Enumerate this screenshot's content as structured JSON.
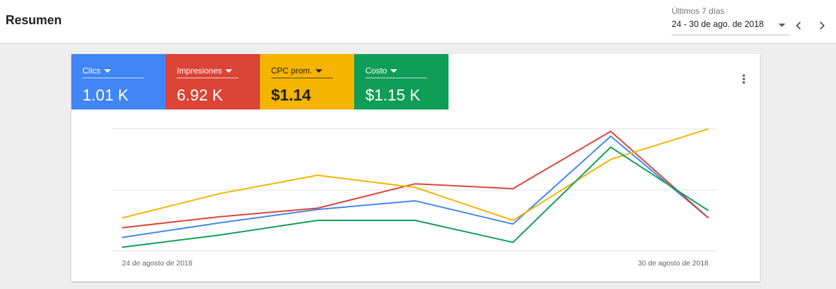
{
  "header": {
    "title": "Resumen",
    "range_label": "Últimos 7 días",
    "range_value": "24 - 30 de ago. de 2018",
    "prev_icon": "chevron-left-icon",
    "next_icon": "chevron-right-icon"
  },
  "metrics": [
    {
      "label": "Clics",
      "value": "1.01 K",
      "color": "#4285f4"
    },
    {
      "label": "Impresiones",
      "value": "6.92 K",
      "color": "#db4437"
    },
    {
      "label": "CPC prom.",
      "value": "$1.14",
      "color": "#f4b400"
    },
    {
      "label": "Costo",
      "value": "$1.15 K",
      "color": "#0f9d58"
    }
  ],
  "menu_icon": "more-vert-icon",
  "chart_data": {
    "type": "line",
    "x_labels": [
      "24 de agosto de 2018",
      "30 de agosto de 2018"
    ],
    "x": [
      "2018-08-24",
      "2018-08-25",
      "2018-08-26",
      "2018-08-27",
      "2018-08-28",
      "2018-08-29",
      "2018-08-30"
    ],
    "ylim": [
      0,
      1
    ],
    "grid": true,
    "series": [
      {
        "name": "Clics",
        "color": "#4285f4",
        "values": [
          0.11,
          0.23,
          0.34,
          0.41,
          0.22,
          0.94,
          0.27
        ]
      },
      {
        "name": "Impresiones",
        "color": "#db4437",
        "values": [
          0.19,
          0.28,
          0.35,
          0.55,
          0.51,
          0.98,
          0.27
        ]
      },
      {
        "name": "CPC prom.",
        "color": "#f4b400",
        "values": [
          0.27,
          0.47,
          0.62,
          0.52,
          0.25,
          0.75,
          1.0
        ]
      },
      {
        "name": "Costo",
        "color": "#0f9d58",
        "values": [
          0.03,
          0.13,
          0.25,
          0.25,
          0.07,
          0.85,
          0.33
        ]
      }
    ]
  }
}
